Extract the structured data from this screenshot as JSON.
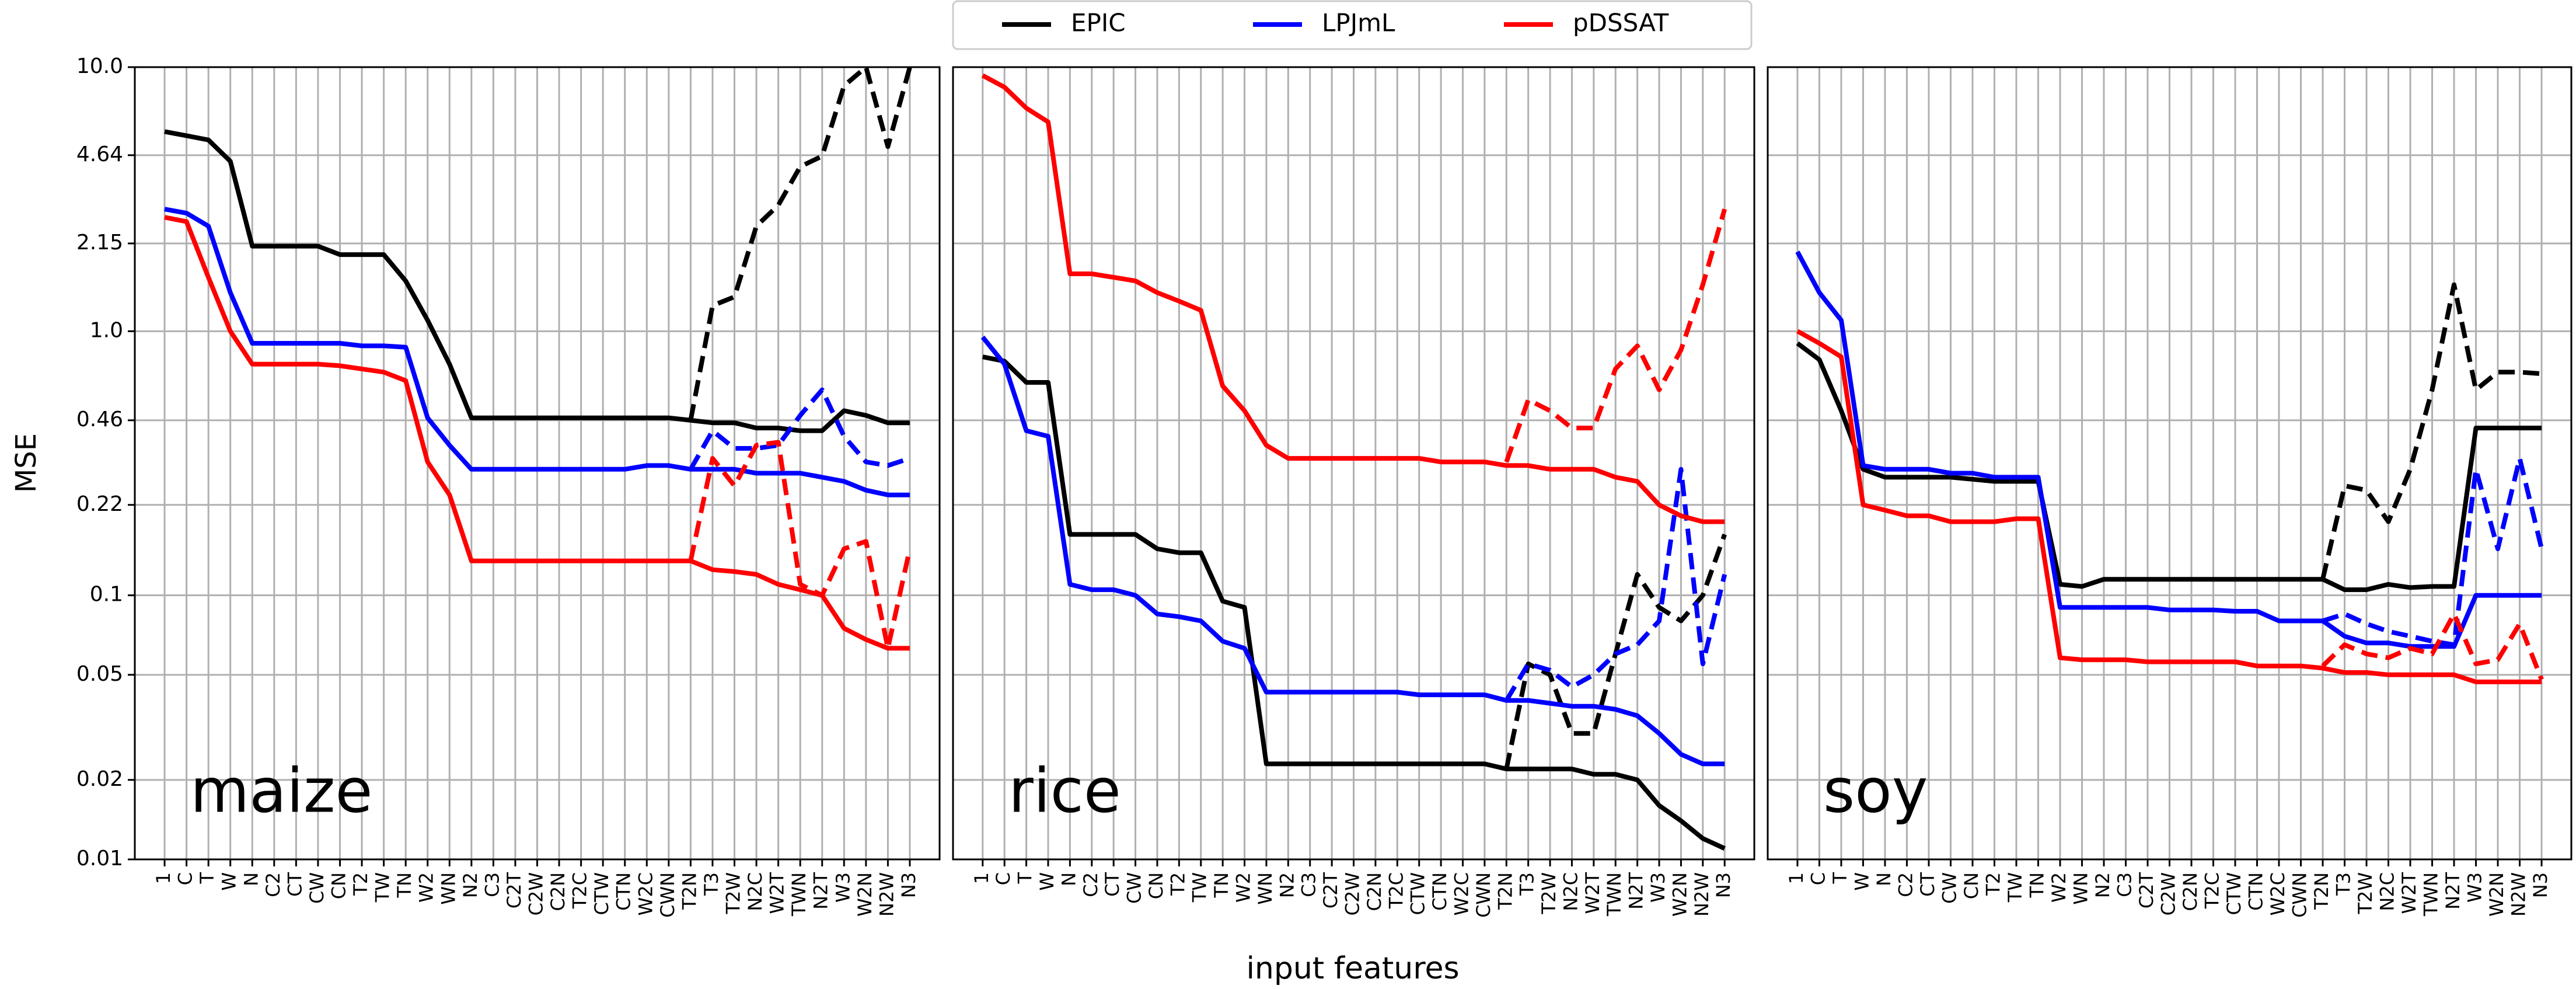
{
  "axes": {
    "ylabel": "MSE",
    "xlabel": "input features",
    "yscale": "log",
    "ylim": [
      0.01,
      10
    ],
    "yticks": [
      0.01,
      0.02,
      0.05,
      0.1,
      0.22,
      0.46,
      {
        "value": 1,
        "label": "1.0"
      },
      2.15,
      4.64,
      {
        "value": 10,
        "label": "10.0"
      }
    ],
    "grid": true
  },
  "legend": [
    {
      "name": "EPIC",
      "color": "#000000"
    },
    {
      "name": "LPJmL",
      "color": "#0000ff"
    },
    {
      "name": "pDSSAT",
      "color": "#ff0000"
    }
  ],
  "chart_data": [
    {
      "type": "line",
      "label": "maize",
      "categories": [
        "1",
        "C",
        "T",
        "W",
        "N",
        "C2",
        "CT",
        "CW",
        "CN",
        "T2",
        "TW",
        "TN",
        "W2",
        "WN",
        "N2",
        "C3",
        "C2T",
        "C2W",
        "C2N",
        "T2C",
        "CTW",
        "CTN",
        "W2C",
        "CWN",
        "T2N",
        "T3",
        "T2W",
        "N2C",
        "W2T",
        "TWN",
        "N2T",
        "W3",
        "W2N",
        "N2W",
        "N3"
      ],
      "series": [
        {
          "color": "#000000",
          "values": [
            5.7,
            5.5,
            5.3,
            4.4,
            2.1,
            2.1,
            2.1,
            2.1,
            1.95,
            1.95,
            1.95,
            1.55,
            1.1,
            0.75,
            0.47,
            0.47,
            0.47,
            0.47,
            0.47,
            0.47,
            0.47,
            0.47,
            0.47,
            0.47,
            0.46,
            0.45,
            0.45,
            0.43,
            0.43,
            0.42,
            0.42,
            0.5,
            0.48,
            0.45,
            0.45
          ],
          "dashed_values": [
            null,
            null,
            null,
            null,
            null,
            null,
            null,
            null,
            null,
            null,
            null,
            null,
            null,
            null,
            null,
            null,
            null,
            null,
            null,
            null,
            null,
            null,
            null,
            null,
            0.46,
            1.25,
            1.35,
            2.5,
            3.0,
            4.2,
            4.6,
            8.5,
            10,
            5.0,
            10
          ]
        },
        {
          "color": "#0000ff",
          "values": [
            2.9,
            2.8,
            2.5,
            1.4,
            0.9,
            0.9,
            0.9,
            0.9,
            0.9,
            0.88,
            0.88,
            0.87,
            0.47,
            0.37,
            0.3,
            0.3,
            0.3,
            0.3,
            0.3,
            0.3,
            0.3,
            0.3,
            0.31,
            0.31,
            0.3,
            0.3,
            0.3,
            0.29,
            0.29,
            0.29,
            0.28,
            0.27,
            0.25,
            0.24,
            0.24
          ],
          "dashed_values": [
            null,
            null,
            null,
            null,
            null,
            null,
            null,
            null,
            null,
            null,
            null,
            null,
            null,
            null,
            null,
            null,
            null,
            null,
            null,
            null,
            null,
            null,
            null,
            null,
            0.3,
            0.42,
            0.36,
            0.36,
            0.37,
            0.48,
            0.6,
            0.4,
            0.32,
            0.31,
            0.33
          ]
        },
        {
          "color": "#ff0000",
          "values": [
            2.7,
            2.6,
            1.6,
            1.0,
            0.75,
            0.75,
            0.75,
            0.75,
            0.74,
            0.72,
            0.7,
            0.65,
            0.32,
            0.24,
            0.135,
            0.135,
            0.135,
            0.135,
            0.135,
            0.135,
            0.135,
            0.135,
            0.135,
            0.135,
            0.135,
            0.125,
            0.123,
            0.12,
            0.11,
            0.105,
            0.1,
            0.075,
            0.068,
            0.063,
            0.063
          ],
          "dashed_values": [
            null,
            null,
            null,
            null,
            null,
            null,
            null,
            null,
            null,
            null,
            null,
            null,
            null,
            null,
            null,
            null,
            null,
            null,
            null,
            null,
            null,
            null,
            null,
            null,
            0.135,
            0.33,
            0.26,
            0.37,
            0.38,
            0.11,
            0.1,
            0.15,
            0.16,
            0.063,
            0.15
          ]
        }
      ]
    },
    {
      "type": "line",
      "label": "rice",
      "categories": [
        "1",
        "C",
        "T",
        "W",
        "N",
        "C2",
        "CT",
        "CW",
        "CN",
        "T2",
        "TW",
        "TN",
        "W2",
        "WN",
        "N2",
        "C3",
        "C2T",
        "C2W",
        "C2N",
        "T2C",
        "CTW",
        "CTN",
        "W2C",
        "CWN",
        "T2N",
        "T3",
        "T2W",
        "N2C",
        "W2T",
        "TWN",
        "N2T",
        "W3",
        "W2N",
        "N2W",
        "N3"
      ],
      "series": [
        {
          "color": "#000000",
          "values": [
            0.8,
            0.77,
            0.64,
            0.64,
            0.17,
            0.17,
            0.17,
            0.17,
            0.15,
            0.145,
            0.145,
            0.095,
            0.09,
            0.023,
            0.023,
            0.023,
            0.023,
            0.023,
            0.023,
            0.023,
            0.023,
            0.023,
            0.023,
            0.023,
            0.022,
            0.022,
            0.022,
            0.022,
            0.021,
            0.021,
            0.02,
            0.016,
            0.014,
            0.012,
            0.011
          ],
          "dashed_values": [
            null,
            null,
            null,
            null,
            null,
            null,
            null,
            null,
            null,
            null,
            null,
            null,
            null,
            null,
            null,
            null,
            null,
            null,
            null,
            null,
            null,
            null,
            null,
            null,
            0.022,
            0.055,
            0.05,
            0.03,
            0.03,
            0.06,
            0.12,
            0.09,
            0.08,
            0.1,
            0.17
          ]
        },
        {
          "color": "#0000ff",
          "values": [
            0.95,
            0.75,
            0.42,
            0.4,
            0.11,
            0.105,
            0.105,
            0.1,
            0.085,
            0.083,
            0.08,
            0.067,
            0.063,
            0.043,
            0.043,
            0.043,
            0.043,
            0.043,
            0.043,
            0.043,
            0.042,
            0.042,
            0.042,
            0.042,
            0.04,
            0.04,
            0.039,
            0.038,
            0.038,
            0.037,
            0.035,
            0.03,
            0.025,
            0.023,
            0.023
          ],
          "dashed_values": [
            null,
            null,
            null,
            null,
            null,
            null,
            null,
            null,
            null,
            null,
            null,
            null,
            null,
            null,
            null,
            null,
            null,
            null,
            null,
            null,
            null,
            null,
            null,
            null,
            0.04,
            0.055,
            0.052,
            0.045,
            0.05,
            0.06,
            0.065,
            0.08,
            0.3,
            0.055,
            0.12
          ]
        },
        {
          "color": "#ff0000",
          "values": [
            9.3,
            8.4,
            7.0,
            6.2,
            1.65,
            1.65,
            1.6,
            1.55,
            1.4,
            1.3,
            1.2,
            0.62,
            0.5,
            0.37,
            0.33,
            0.33,
            0.33,
            0.33,
            0.33,
            0.33,
            0.33,
            0.32,
            0.32,
            0.32,
            0.31,
            0.31,
            0.3,
            0.3,
            0.3,
            0.28,
            0.27,
            0.22,
            0.2,
            0.19,
            0.19
          ],
          "dashed_values": [
            null,
            null,
            null,
            null,
            null,
            null,
            null,
            null,
            null,
            null,
            null,
            null,
            null,
            null,
            null,
            null,
            null,
            null,
            null,
            null,
            null,
            null,
            null,
            null,
            0.32,
            0.55,
            0.5,
            0.43,
            0.43,
            0.72,
            0.88,
            0.6,
            0.85,
            1.5,
            2.9
          ]
        }
      ]
    },
    {
      "type": "line",
      "label": "soy",
      "categories": [
        "1",
        "C",
        "T",
        "W",
        "N",
        "C2",
        "CT",
        "CW",
        "CN",
        "T2",
        "TW",
        "TN",
        "W2",
        "WN",
        "N2",
        "C3",
        "C2T",
        "C2W",
        "C2N",
        "T2C",
        "CTW",
        "CTN",
        "W2C",
        "CWN",
        "T2N",
        "T3",
        "T2W",
        "N2C",
        "W2T",
        "TWN",
        "N2T",
        "W3",
        "W2N",
        "N2W",
        "N3"
      ],
      "series": [
        {
          "color": "#000000",
          "values": [
            0.9,
            0.78,
            0.5,
            0.3,
            0.28,
            0.28,
            0.28,
            0.28,
            0.275,
            0.27,
            0.27,
            0.27,
            0.11,
            0.108,
            0.115,
            0.115,
            0.115,
            0.115,
            0.115,
            0.115,
            0.115,
            0.115,
            0.115,
            0.115,
            0.115,
            0.105,
            0.105,
            0.11,
            0.107,
            0.108,
            0.108,
            0.43,
            0.43,
            0.43,
            0.43
          ],
          "dashed_values": [
            null,
            null,
            null,
            null,
            null,
            null,
            null,
            null,
            null,
            null,
            null,
            null,
            null,
            null,
            null,
            null,
            null,
            null,
            null,
            null,
            null,
            null,
            null,
            null,
            0.115,
            0.26,
            0.25,
            0.19,
            0.3,
            0.6,
            1.5,
            0.6,
            0.7,
            0.7,
            0.69
          ]
        },
        {
          "color": "#0000ff",
          "values": [
            2.0,
            1.4,
            1.1,
            0.31,
            0.3,
            0.3,
            0.3,
            0.29,
            0.29,
            0.28,
            0.28,
            0.28,
            0.09,
            0.09,
            0.09,
            0.09,
            0.09,
            0.088,
            0.088,
            0.088,
            0.087,
            0.087,
            0.08,
            0.08,
            0.08,
            0.07,
            0.066,
            0.066,
            0.064,
            0.064,
            0.064,
            0.1,
            0.1,
            0.1,
            0.1
          ],
          "dashed_values": [
            null,
            null,
            null,
            null,
            null,
            null,
            null,
            null,
            null,
            null,
            null,
            null,
            null,
            null,
            null,
            null,
            null,
            null,
            null,
            null,
            null,
            null,
            null,
            null,
            0.08,
            0.085,
            0.078,
            0.073,
            0.07,
            0.067,
            0.065,
            0.3,
            0.15,
            0.33,
            0.15
          ]
        },
        {
          "color": "#ff0000",
          "values": [
            1.0,
            0.9,
            0.8,
            0.22,
            0.21,
            0.2,
            0.2,
            0.19,
            0.19,
            0.19,
            0.195,
            0.195,
            0.058,
            0.057,
            0.057,
            0.057,
            0.056,
            0.056,
            0.056,
            0.056,
            0.056,
            0.054,
            0.054,
            0.054,
            0.053,
            0.051,
            0.051,
            0.05,
            0.05,
            0.05,
            0.05,
            0.047,
            0.047,
            0.047,
            0.047
          ],
          "dashed_values": [
            null,
            null,
            null,
            null,
            null,
            null,
            null,
            null,
            null,
            null,
            null,
            null,
            null,
            null,
            null,
            null,
            null,
            null,
            null,
            null,
            null,
            null,
            null,
            null,
            0.054,
            0.065,
            0.06,
            0.058,
            0.063,
            0.06,
            0.085,
            0.055,
            0.057,
            0.078,
            0.048
          ]
        }
      ]
    }
  ]
}
